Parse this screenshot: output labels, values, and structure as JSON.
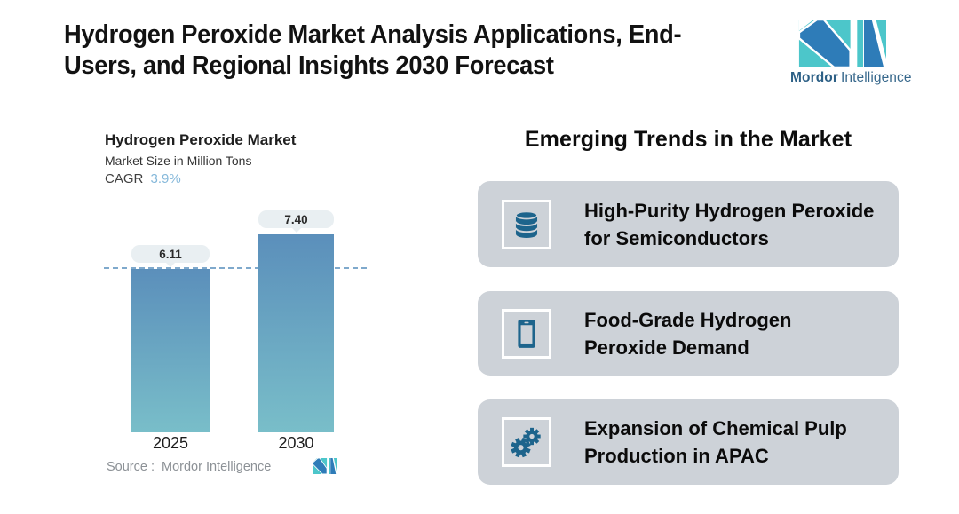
{
  "header": {
    "title_line1": "Hydrogen Peroxide Market Analysis Applications, End-",
    "title_line2": "Users, and Regional Insights 2030 Forecast",
    "brand": {
      "word1": "Mordor",
      "word2": "Intelligence"
    }
  },
  "chart_data": {
    "type": "bar",
    "title": "Hydrogen Peroxide Market",
    "subtitle": "Market Size in Million Tons",
    "cagr_label": "CAGR",
    "cagr_value": "3.9%",
    "categories": [
      "2025",
      "2030"
    ],
    "values": [
      6.11,
      7.4
    ],
    "value_labels": [
      "6.11",
      "7.40"
    ],
    "dashed_reference_line_at": 6.11,
    "ylim": [
      0,
      8
    ],
    "legend": "none",
    "source_label": "Source :",
    "source_value": "Mordor Intelligence"
  },
  "trends": {
    "heading": "Emerging Trends in the Market",
    "cards": [
      {
        "icon": "database-icon",
        "line1": "High-Purity Hydrogen Peroxide",
        "line2": "for Semiconductors"
      },
      {
        "icon": "smartphone-icon",
        "line1": "Food-Grade Hydrogen",
        "line2": "Peroxide Demand"
      },
      {
        "icon": "gears-icon",
        "line1": "Expansion of Chemical Pulp",
        "line2": "Production in APAC"
      }
    ]
  },
  "colors": {
    "page_bg": "#ffffff",
    "bar_top": "#5b8fbb",
    "bar_bottom": "#79bec9",
    "dashed": "#7fa9cc",
    "badge_bg": "#e9eff2",
    "card_bg": "#cdd2d8",
    "icon_blue": "#1d648c",
    "logo_blue": "#2e7cb8",
    "logo_teal": "#4cc6ca",
    "brand_text": "#2d6086",
    "cagr_value": "#85b8da",
    "source_text": "#8c9196"
  }
}
